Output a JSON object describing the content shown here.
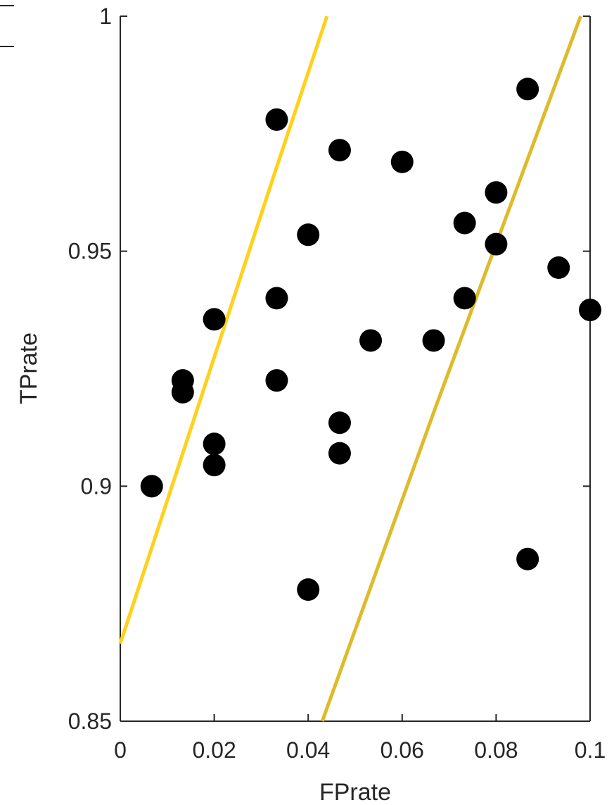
{
  "chart_data": {
    "type": "scatter",
    "title": "",
    "xlabel": "FPrate",
    "ylabel": "TPrate",
    "xlim": [
      0,
      0.1
    ],
    "ylim": [
      0.85,
      1
    ],
    "xticks": [
      0,
      0.02,
      0.04,
      0.06,
      0.08,
      0.1
    ],
    "xtick_labels": [
      "0",
      "0.02",
      "0.04",
      "0.06",
      "0.08",
      "0.1"
    ],
    "yticks": [
      0.85,
      0.9,
      0.95,
      1
    ],
    "ytick_labels": [
      "0.85",
      "0.9",
      "0.95",
      "1"
    ],
    "grid": false,
    "points": [
      {
        "x": 0.0067,
        "y": 0.9
      },
      {
        "x": 0.0133,
        "y": 0.9225
      },
      {
        "x": 0.0133,
        "y": 0.92
      },
      {
        "x": 0.02,
        "y": 0.9355
      },
      {
        "x": 0.02,
        "y": 0.909
      },
      {
        "x": 0.02,
        "y": 0.9045
      },
      {
        "x": 0.0333,
        "y": 0.978
      },
      {
        "x": 0.0333,
        "y": 0.94
      },
      {
        "x": 0.0333,
        "y": 0.9225
      },
      {
        "x": 0.04,
        "y": 0.9535
      },
      {
        "x": 0.04,
        "y": 0.878
      },
      {
        "x": 0.0467,
        "y": 0.9715
      },
      {
        "x": 0.0467,
        "y": 0.9135
      },
      {
        "x": 0.0467,
        "y": 0.907
      },
      {
        "x": 0.0533,
        "y": 0.931
      },
      {
        "x": 0.06,
        "y": 0.969
      },
      {
        "x": 0.0667,
        "y": 0.931
      },
      {
        "x": 0.0733,
        "y": 0.956
      },
      {
        "x": 0.0733,
        "y": 0.94
      },
      {
        "x": 0.08,
        "y": 0.9625
      },
      {
        "x": 0.08,
        "y": 0.9515
      },
      {
        "x": 0.0867,
        "y": 0.9845
      },
      {
        "x": 0.0867,
        "y": 0.8845
      },
      {
        "x": 0.0933,
        "y": 0.9465
      },
      {
        "x": 0.1,
        "y": 0.9375
      }
    ],
    "lines": [
      {
        "color": "#FFD11A",
        "x": [
          0,
          0.033,
          0.044
        ],
        "y": [
          0.8665,
          0.967,
          1.0
        ]
      },
      {
        "color": "#DDBB2A",
        "x": [
          0.043,
          0.067,
          0.098
        ],
        "y": [
          0.85,
          0.9165,
          1.0
        ]
      }
    ],
    "colors": {
      "points": "#000000",
      "axis": "#262626"
    }
  }
}
